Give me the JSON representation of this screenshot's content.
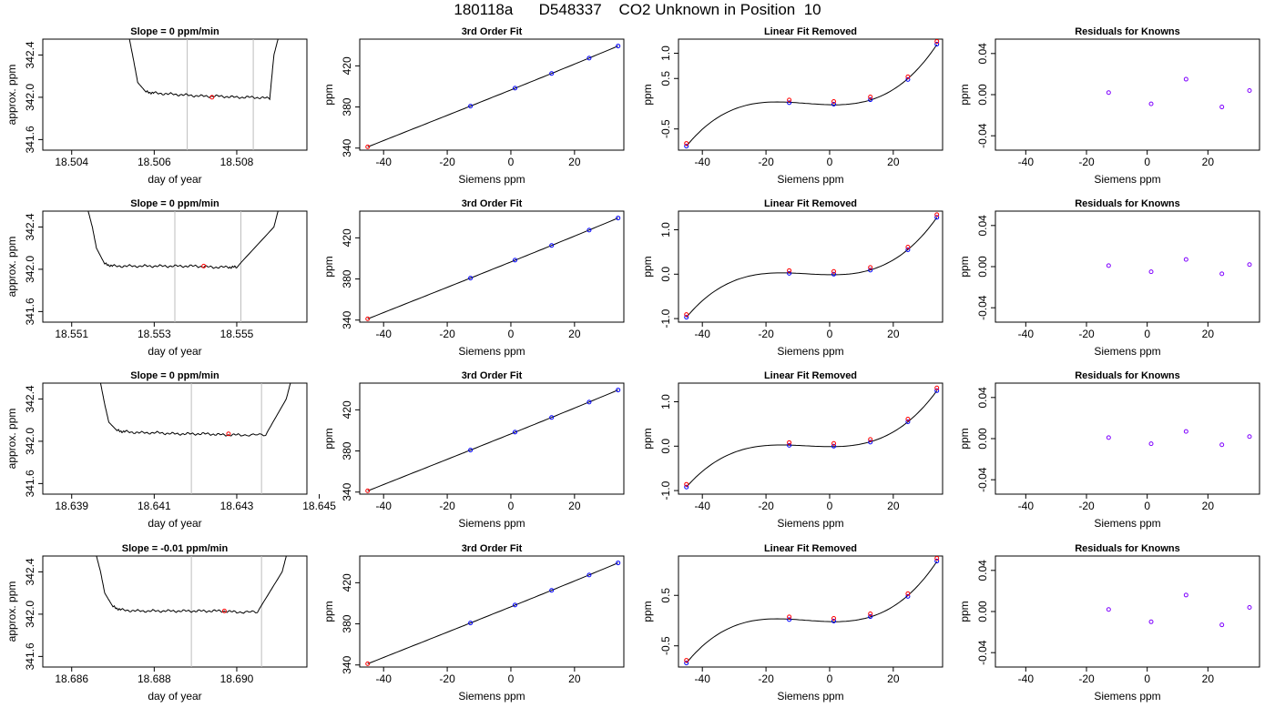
{
  "page_title": "180118a      D548337    CO2 Unknown in Position  10",
  "colors": {
    "trace": "#000000",
    "vline": "#bebebe",
    "marker_red": "#ff0000",
    "marker_blue": "#0000ff",
    "marker_purple": "#7f00ff"
  },
  "chart_data": [
    {
      "type": "line",
      "panel": "trace-row-1",
      "title": "Slope =  0  ppm/min",
      "xlabel": "day of year",
      "ylabel": "approx. ppm",
      "xlim": [
        18.5033,
        18.5097
      ],
      "ylim": [
        341.5,
        342.55
      ],
      "xticks": [
        18.504,
        18.506,
        18.508
      ],
      "xtick_labels": [
        "18.504",
        "18.506",
        "18.508"
      ],
      "yticks": [
        341.6,
        342.0,
        342.4
      ],
      "ytick_labels": [
        "341.6",
        "342.0",
        "342.4"
      ],
      "series": [
        {
          "x": [
            18.5054,
            18.5055,
            18.5056,
            18.5058,
            18.506,
            18.5064,
            18.5068,
            18.5072,
            18.5076,
            18.508,
            18.5084,
            18.5088,
            18.5089,
            18.509
          ],
          "y": [
            342.55,
            342.35,
            342.14,
            342.05,
            342.04,
            342.03,
            342.02,
            342.01,
            342.01,
            342.0,
            342.0,
            341.99,
            342.4,
            342.55
          ]
        }
      ],
      "vlines": [
        18.5068,
        18.5084
      ],
      "marker": {
        "x": 18.5074,
        "y": 342.0
      }
    },
    {
      "type": "line",
      "panel": "trace-row-2",
      "title": "Slope =  0  ppm/min",
      "xlabel": "day of year",
      "ylabel": "approx. ppm",
      "xlim": [
        18.5503,
        18.5567
      ],
      "ylim": [
        341.5,
        342.55
      ],
      "xticks": [
        18.551,
        18.553,
        18.555
      ],
      "xtick_labels": [
        "18.551",
        "18.553",
        "18.555"
      ],
      "yticks": [
        341.6,
        342.0,
        342.4
      ],
      "ytick_labels": [
        "341.6",
        "342.0",
        "342.4"
      ],
      "series": [
        {
          "x": [
            18.5514,
            18.5515,
            18.5516,
            18.5518,
            18.552,
            18.5524,
            18.5528,
            18.5532,
            18.5536,
            18.554,
            18.5544,
            18.5548,
            18.555,
            18.5559,
            18.556
          ],
          "y": [
            342.55,
            342.4,
            342.2,
            342.05,
            342.03,
            342.03,
            342.03,
            342.03,
            342.03,
            342.03,
            342.02,
            342.02,
            342.02,
            342.4,
            342.55
          ]
        }
      ],
      "vlines": [
        18.5535,
        18.5551
      ],
      "marker": {
        "x": 18.5542,
        "y": 342.03
      }
    },
    {
      "type": "line",
      "panel": "trace-row-3",
      "title": "Slope =  0  ppm/min",
      "xlabel": "day of year",
      "ylabel": "approx. ppm",
      "xlim": [
        18.6383,
        18.6447
      ],
      "ylim": [
        341.5,
        342.55
      ],
      "xticks": [
        18.639,
        18.641,
        18.643,
        18.645
      ],
      "xtick_labels": [
        "18.639",
        "18.641",
        "18.643",
        "18.645"
      ],
      "yticks": [
        341.6,
        342.0,
        342.4
      ],
      "ytick_labels": [
        "341.6",
        "342.0",
        "342.4"
      ],
      "series": [
        {
          "x": [
            18.6397,
            18.6398,
            18.6399,
            18.6401,
            18.6403,
            18.6407,
            18.6411,
            18.6415,
            18.6419,
            18.6423,
            18.6427,
            18.6431,
            18.6437,
            18.6442,
            18.6443
          ],
          "y": [
            342.55,
            342.35,
            342.18,
            342.1,
            342.09,
            342.08,
            342.08,
            342.07,
            342.07,
            342.07,
            342.06,
            342.06,
            342.06,
            342.4,
            342.55
          ]
        }
      ],
      "vlines": [
        18.6419,
        18.6436
      ],
      "marker": {
        "x": 18.6428,
        "y": 342.07
      }
    },
    {
      "type": "line",
      "panel": "trace-row-4",
      "title": "Slope =  -0.01  ppm/min",
      "xlabel": "day of year",
      "ylabel": "approx. ppm",
      "xlim": [
        18.6853,
        18.6917
      ],
      "ylim": [
        341.5,
        342.55
      ],
      "xticks": [
        18.686,
        18.688,
        18.69
      ],
      "xtick_labels": [
        "18.686",
        "18.688",
        "18.690"
      ],
      "yticks": [
        341.6,
        342.0,
        342.4
      ],
      "ytick_labels": [
        "341.6",
        "342.0",
        "342.4"
      ],
      "series": [
        {
          "x": [
            18.6866,
            18.6867,
            18.6868,
            18.687,
            18.6872,
            18.6876,
            18.688,
            18.6884,
            18.6888,
            18.6892,
            18.6896,
            18.69,
            18.6905,
            18.6911,
            18.6912
          ],
          "y": [
            342.55,
            342.4,
            342.2,
            342.07,
            342.04,
            342.03,
            342.03,
            342.03,
            342.03,
            342.03,
            342.03,
            342.02,
            342.02,
            342.4,
            342.55
          ]
        }
      ],
      "vlines": [
        18.6889,
        18.6906
      ],
      "marker": {
        "x": 18.6897,
        "y": 342.03
      }
    },
    {
      "type": "line",
      "panel": "fit-row-1",
      "title": "3rd Order Fit",
      "xlabel": "Siemens ppm",
      "ylabel": "ppm",
      "xlim": [
        -47.5,
        35.5
      ],
      "ylim": [
        338,
        446
      ],
      "xticks": [
        -40,
        -20,
        0,
        20
      ],
      "xtick_labels": [
        "-40",
        "-20",
        "0",
        "20"
      ],
      "yticks": [
        340,
        380,
        420
      ],
      "ytick_labels": [
        "340",
        "380",
        "420"
      ],
      "x": [
        -45.0,
        -12.7,
        1.3,
        12.8,
        24.6,
        33.7
      ],
      "y": [
        341.2,
        380.8,
        398.3,
        412.6,
        427.5,
        439.3
      ]
    },
    {
      "type": "line",
      "panel": "fit-row-2",
      "title": "3rd Order Fit",
      "xlabel": "Siemens ppm",
      "ylabel": "ppm",
      "xlim": [
        -47.5,
        35.5
      ],
      "ylim": [
        338,
        446
      ],
      "xticks": [
        -40,
        -20,
        0,
        20
      ],
      "xtick_labels": [
        "-40",
        "-20",
        "0",
        "20"
      ],
      "yticks": [
        340,
        380,
        420
      ],
      "ytick_labels": [
        "340",
        "380",
        "420"
      ],
      "x": [
        -45.0,
        -12.7,
        1.3,
        12.8,
        24.6,
        33.7
      ],
      "y": [
        341.2,
        380.8,
        398.3,
        412.6,
        427.5,
        439.3
      ]
    },
    {
      "type": "line",
      "panel": "fit-row-3",
      "title": "3rd Order Fit",
      "xlabel": "Siemens ppm",
      "ylabel": "ppm",
      "xlim": [
        -47.5,
        35.5
      ],
      "ylim": [
        338,
        446
      ],
      "xticks": [
        -40,
        -20,
        0,
        20
      ],
      "xtick_labels": [
        "-40",
        "-20",
        "0",
        "20"
      ],
      "yticks": [
        340,
        380,
        420
      ],
      "ytick_labels": [
        "340",
        "380",
        "420"
      ],
      "x": [
        -45.0,
        -12.7,
        1.3,
        12.8,
        24.6,
        33.7
      ],
      "y": [
        341.2,
        380.8,
        398.3,
        412.6,
        427.5,
        439.3
      ]
    },
    {
      "type": "line",
      "panel": "fit-row-4",
      "title": "3rd Order Fit",
      "xlabel": "Siemens ppm",
      "ylabel": "ppm",
      "xlim": [
        -47.5,
        35.5
      ],
      "ylim": [
        338,
        446
      ],
      "xticks": [
        -40,
        -20,
        0,
        20
      ],
      "xtick_labels": [
        "-40",
        "-20",
        "0",
        "20"
      ],
      "yticks": [
        340,
        380,
        420
      ],
      "ytick_labels": [
        "340",
        "380",
        "420"
      ],
      "x": [
        -45.0,
        -12.7,
        1.3,
        12.8,
        24.6,
        33.7
      ],
      "y": [
        341.2,
        380.8,
        398.3,
        412.6,
        427.5,
        439.3
      ]
    },
    {
      "type": "line",
      "panel": "linres-row-1",
      "title": "Linear Fit Removed",
      "xlabel": "Siemens ppm",
      "ylabel": "ppm",
      "xlim": [
        -47.5,
        35.5
      ],
      "ylim": [
        -0.92,
        1.28
      ],
      "xticks": [
        -40,
        -20,
        0,
        20
      ],
      "xtick_labels": [
        "-40",
        "-20",
        "0",
        "20"
      ],
      "yticks": [
        -0.5,
        0.5,
        1.0
      ],
      "ytick_labels": [
        "-0.5",
        "0.5",
        "1.0"
      ],
      "x": [
        -45.0,
        -12.7,
        1.3,
        12.8,
        24.6,
        33.7
      ],
      "y": [
        -0.84,
        0.02,
        -0.01,
        0.08,
        0.48,
        1.18
      ]
    },
    {
      "type": "line",
      "panel": "linres-row-2",
      "title": "Linear Fit Removed",
      "xlabel": "Siemens ppm",
      "ylabel": "ppm",
      "xlim": [
        -47.5,
        35.5
      ],
      "ylim": [
        -1.08,
        1.42
      ],
      "xticks": [
        -40,
        -20,
        0,
        20
      ],
      "xtick_labels": [
        "-40",
        "-20",
        "0",
        "20"
      ],
      "yticks": [
        -1.0,
        0.0,
        1.0
      ],
      "ytick_labels": [
        "-1.0",
        "0.0",
        "1.0"
      ],
      "x": [
        -45.0,
        -12.7,
        1.3,
        12.8,
        24.6,
        33.7
      ],
      "y": [
        -0.97,
        0.02,
        0.0,
        0.09,
        0.55,
        1.28
      ]
    },
    {
      "type": "line",
      "panel": "linres-row-3",
      "title": "Linear Fit Removed",
      "xlabel": "Siemens ppm",
      "ylabel": "ppm",
      "xlim": [
        -47.5,
        35.5
      ],
      "ylim": [
        -1.08,
        1.42
      ],
      "xticks": [
        -40,
        -20,
        0,
        20
      ],
      "xtick_labels": [
        "-40",
        "-20",
        "0",
        "20"
      ],
      "yticks": [
        -1.0,
        0.0,
        1.0
      ],
      "ytick_labels": [
        "-1.0",
        "0.0",
        "1.0"
      ],
      "x": [
        -45.0,
        -12.7,
        1.3,
        12.8,
        24.6,
        33.7
      ],
      "y": [
        -0.92,
        0.02,
        0.0,
        0.09,
        0.55,
        1.25
      ]
    },
    {
      "type": "line",
      "panel": "linres-row-4",
      "title": "Linear Fit Removed",
      "xlabel": "Siemens ppm",
      "ylabel": "ppm",
      "xlim": [
        -47.5,
        35.5
      ],
      "ylim": [
        -0.92,
        1.28
      ],
      "xticks": [
        -40,
        -20,
        0,
        20
      ],
      "xtick_labels": [
        "-40",
        "-20",
        "0",
        "20"
      ],
      "yticks": [
        -0.5,
        0.5
      ],
      "ytick_labels": [
        "-0.5",
        "0.5"
      ],
      "x": [
        -45.0,
        -12.7,
        1.3,
        12.8,
        24.6,
        33.7
      ],
      "y": [
        -0.84,
        0.02,
        -0.01,
        0.08,
        0.48,
        1.18
      ]
    },
    {
      "type": "scatter",
      "panel": "resid-row-1",
      "title": "Residuals for Knowns",
      "xlabel": "Siemens ppm",
      "ylabel": "ppm",
      "xlim": [
        -50,
        37
      ],
      "ylim": [
        -0.054,
        0.054
      ],
      "xticks": [
        -40,
        -20,
        0,
        20
      ],
      "xtick_labels": [
        "-40",
        "-20",
        "0",
        "20"
      ],
      "yticks": [
        -0.04,
        0.0,
        0.04
      ],
      "ytick_labels": [
        "-0.04",
        "0.00",
        "0.04"
      ],
      "x": [
        -12.7,
        1.3,
        12.8,
        24.6,
        33.7
      ],
      "y": [
        0.002,
        -0.009,
        0.015,
        -0.012,
        0.004
      ]
    },
    {
      "type": "scatter",
      "panel": "resid-row-2",
      "title": "Residuals for Knowns",
      "xlabel": "Siemens ppm",
      "ylabel": "ppm",
      "xlim": [
        -50,
        37
      ],
      "ylim": [
        -0.054,
        0.054
      ],
      "xticks": [
        -40,
        -20,
        0,
        20
      ],
      "xtick_labels": [
        "-40",
        "-20",
        "0",
        "20"
      ],
      "yticks": [
        -0.04,
        0.0,
        0.04
      ],
      "ytick_labels": [
        "-0.04",
        "0.00",
        "0.04"
      ],
      "x": [
        -12.7,
        1.3,
        12.8,
        24.6,
        33.7
      ],
      "y": [
        0.001,
        -0.005,
        0.007,
        -0.007,
        0.002
      ]
    },
    {
      "type": "scatter",
      "panel": "resid-row-3",
      "title": "Residuals for Knowns",
      "xlabel": "Siemens ppm",
      "ylabel": "ppm",
      "xlim": [
        -50,
        37
      ],
      "ylim": [
        -0.054,
        0.054
      ],
      "xticks": [
        -40,
        -20,
        0,
        20
      ],
      "xtick_labels": [
        "-40",
        "-20",
        "0",
        "20"
      ],
      "yticks": [
        -0.04,
        0.0,
        0.04
      ],
      "ytick_labels": [
        "-0.04",
        "0.00",
        "0.04"
      ],
      "x": [
        -12.7,
        1.3,
        12.8,
        24.6,
        33.7
      ],
      "y": [
        0.001,
        -0.005,
        0.007,
        -0.006,
        0.002
      ]
    },
    {
      "type": "scatter",
      "panel": "resid-row-4",
      "title": "Residuals for Knowns",
      "xlabel": "Siemens ppm",
      "ylabel": "ppm",
      "xlim": [
        -50,
        37
      ],
      "ylim": [
        -0.054,
        0.054
      ],
      "xticks": [
        -40,
        -20,
        0,
        20
      ],
      "xtick_labels": [
        "-40",
        "-20",
        "0",
        "20"
      ],
      "yticks": [
        -0.04,
        0.0,
        0.04
      ],
      "ytick_labels": [
        "-0.04",
        "0.00",
        "0.04"
      ],
      "x": [
        -12.7,
        1.3,
        12.8,
        24.6,
        33.7
      ],
      "y": [
        0.002,
        -0.01,
        0.016,
        -0.013,
        0.004
      ]
    }
  ]
}
